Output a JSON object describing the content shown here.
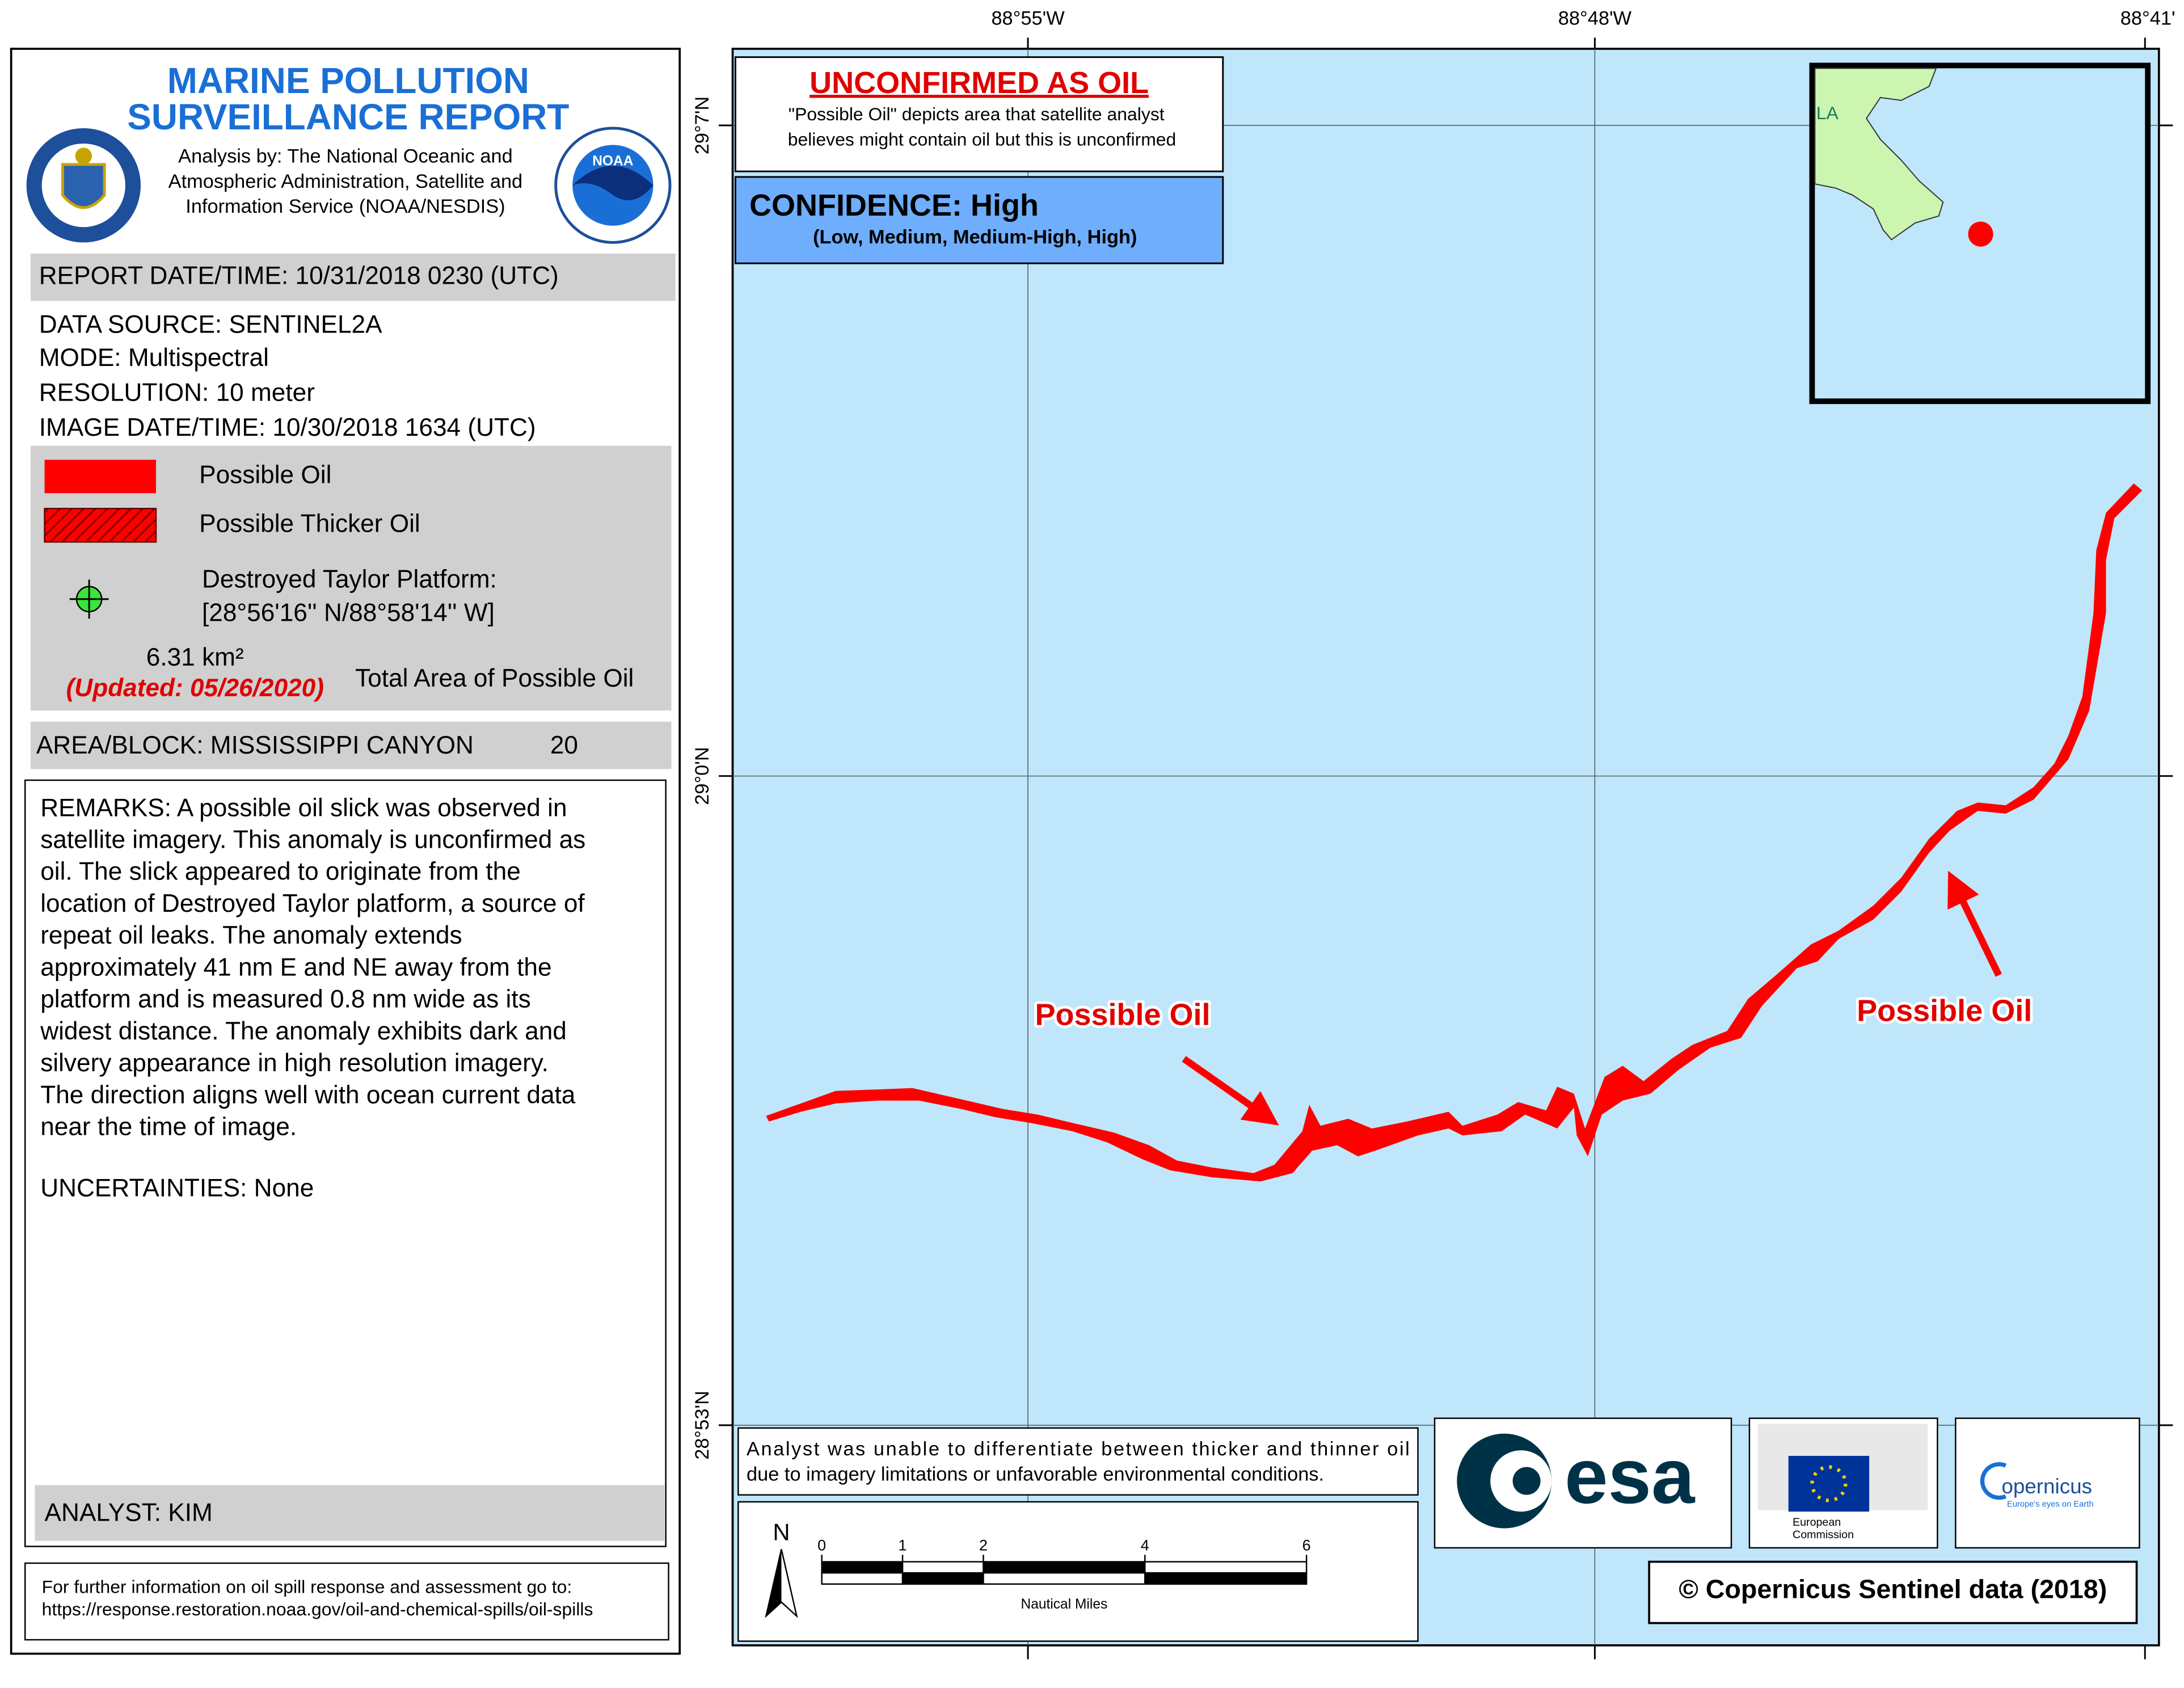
{
  "report": {
    "title": [
      "MARINE POLLUTION",
      "SURVEILLANCE REPORT"
    ],
    "analysis": [
      "Analysis by: The National Oceanic and",
      "Atmospheric Administration, Satellite and",
      "Information Service (NOAA/NESDIS)"
    ],
    "noaa_logo": "NOAA",
    "report_datetime": "REPORT DATE/TIME: 10/31/2018 0230 (UTC)",
    "details": [
      "DATA SOURCE: SENTINEL2A",
      "MODE: Multispectral",
      "RESOLUTION: 10 meter",
      "IMAGE DATE/TIME: 10/30/2018 1634 (UTC)"
    ],
    "legend": {
      "possible_oil": "Possible Oil",
      "thicker_oil": "Possible Thicker Oil",
      "platform": [
        "Destroyed Taylor Platform:",
        "[28°56'16'' N/88°58'14'' W]"
      ],
      "area_value": "6.31 km²",
      "updated": "(Updated: 05/26/2020)",
      "area_label": "Total Area of Possible Oil"
    },
    "area_block": "AREA/BLOCK: MISSISSIPPI CANYON",
    "block_number": "20",
    "remarks": [
      "REMARKS: A possible oil slick was observed in",
      "satellite imagery. This anomaly is unconfirmed as",
      "oil.  The slick appeared to originate from the",
      "location of Destroyed Taylor platform, a source of",
      "repeat oil leaks. The anomaly extends",
      "approximately 41 nm E and NE away from the",
      "platform and is measured 0.8 nm wide as its",
      "widest distance.  The anomaly exhibits dark and",
      "silvery appearance in high resolution imagery.",
      "The direction aligns well with ocean current data",
      "near the time of image."
    ],
    "uncertainties": "UNCERTAINTIES: None",
    "analyst": "ANALYST: KIM",
    "further_info": [
      "For further information on oil spill response and assessment go to:",
      "https://response.restoration.noaa.gov/oil-and-chemical-spills/oil-spills"
    ]
  },
  "map": {
    "lon_labels": [
      "88°55'W",
      "88°48'W",
      "88°41'"
    ],
    "lat_labels": [
      "29°7'N",
      "29°0'N",
      "28°53'N"
    ],
    "unconfirmed": {
      "title": "UNCONFIRMED AS OIL",
      "lines": [
        "\"Possible Oil\" depicts area that satellite analyst",
        "believes might contain oil but this is unconfirmed"
      ]
    },
    "confidence": "CONFIDENCE: High",
    "confidence_scale": "(Low, Medium, Medium-High, High)",
    "inset_label": "LA",
    "annotations": [
      "Possible Oil",
      "Possible Oil"
    ],
    "disclaimer": [
      "Analyst was unable to differentiate between thicker and thinner oil",
      "due to imagery limitations or unfavorable environmental conditions."
    ],
    "north": "N",
    "scale_ticks": [
      0,
      1,
      2,
      4,
      6
    ],
    "scale_unit": "Nautical Miles",
    "logos": {
      "esa": "esa",
      "ec": [
        "European",
        "Commission"
      ],
      "copernicus": "opernicus",
      "copernicus_tagline": "Europe's eyes on Earth"
    },
    "copyright": "© Copernicus Sentinel data (2018)"
  }
}
